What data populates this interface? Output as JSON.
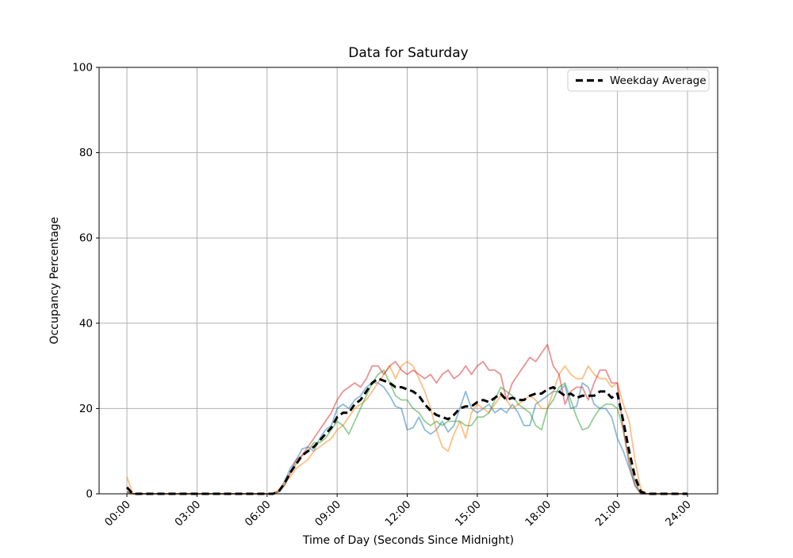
{
  "figure": {
    "title": "Data for Saturday",
    "background_color": "#ffffff"
  },
  "axes": {
    "xlabel": "Time of Day (Seconds Since Midnight)",
    "ylabel": "Occupancy Percentage",
    "x_ticks": [
      {
        "hours": 0,
        "label": "00:00"
      },
      {
        "hours": 3,
        "label": "03:00"
      },
      {
        "hours": 6,
        "label": "06:00"
      },
      {
        "hours": 9,
        "label": "09:00"
      },
      {
        "hours": 12,
        "label": "12:00"
      },
      {
        "hours": 15,
        "label": "15:00"
      },
      {
        "hours": 18,
        "label": "18:00"
      },
      {
        "hours": 21,
        "label": "21:00"
      },
      {
        "hours": 24,
        "label": "24:00"
      }
    ],
    "y_ticks": [
      0,
      20,
      40,
      60,
      80,
      100
    ],
    "xlim_hours": [
      -1.19,
      25.29
    ],
    "ylim": [
      0,
      100
    ],
    "grid": true,
    "grid_color": "#b0b0b0",
    "spine_color": "#000000"
  },
  "legend": {
    "position": "upper-right",
    "entries": [
      {
        "label": "Weekday Average",
        "line_style": "dashed",
        "color": "#000000"
      }
    ]
  },
  "chart_data": {
    "type": "line",
    "title": "Data for Saturday",
    "xlabel": "Time of Day (Seconds Since Midnight)",
    "ylabel": "Occupancy Percentage",
    "ylim": [
      0,
      100
    ],
    "x_unit": "hours_since_midnight",
    "x": [
      0,
      0.25,
      0.5,
      0.75,
      1,
      1.25,
      1.5,
      1.75,
      2,
      2.25,
      2.5,
      2.75,
      3,
      3.25,
      3.5,
      3.75,
      4,
      4.25,
      4.5,
      4.75,
      5,
      5.25,
      5.5,
      5.75,
      6,
      6.25,
      6.5,
      6.75,
      7,
      7.25,
      7.5,
      7.75,
      8,
      8.25,
      8.5,
      8.75,
      9,
      9.25,
      9.5,
      9.75,
      10,
      10.25,
      10.5,
      10.75,
      11,
      11.25,
      11.5,
      11.75,
      12,
      12.25,
      12.5,
      12.75,
      13,
      13.25,
      13.5,
      13.75,
      14,
      14.25,
      14.5,
      14.75,
      15,
      15.25,
      15.5,
      15.75,
      16,
      16.25,
      16.5,
      16.75,
      17,
      17.25,
      17.5,
      17.75,
      18,
      18.25,
      18.5,
      18.75,
      19,
      19.25,
      19.5,
      19.75,
      20,
      20.25,
      20.5,
      20.75,
      21,
      21.25,
      21.5,
      21.75,
      22,
      22.25,
      22.5,
      22.75,
      23,
      23.25,
      23.5,
      23.75,
      24
    ],
    "series": [
      {
        "name": "series-1",
        "color": "#1f77b4",
        "opacity": 0.5,
        "width": 1.8,
        "dash": null,
        "values": [
          0.5,
          0,
          0,
          0,
          0,
          0,
          0,
          0,
          0,
          0,
          0,
          0,
          0,
          0,
          0,
          0,
          0,
          0,
          0,
          0,
          0,
          0,
          0,
          0,
          0,
          0,
          0.5,
          3,
          6,
          8,
          10.5,
          11,
          10,
          13,
          15,
          16,
          20,
          21,
          20,
          22,
          23,
          25,
          26,
          26,
          25,
          23,
          20.5,
          20,
          15,
          15.5,
          18,
          15,
          14,
          15,
          17,
          14.5,
          16,
          20,
          24,
          20,
          19,
          20,
          21,
          19,
          20,
          19,
          21,
          19,
          16,
          16,
          21,
          22,
          23,
          24,
          24,
          25.5,
          20,
          20.5,
          26,
          25,
          21,
          20,
          20,
          18,
          13,
          10,
          6,
          2,
          0,
          0,
          0,
          0,
          0,
          0,
          0,
          0,
          0
        ]
      },
      {
        "name": "series-2",
        "color": "#ff7f0e",
        "opacity": 0.5,
        "width": 1.8,
        "dash": null,
        "values": [
          4,
          0,
          0,
          0,
          0,
          0,
          0,
          0,
          0,
          0,
          0,
          0,
          0,
          0,
          0,
          0,
          0,
          0,
          0,
          0,
          0,
          0,
          0,
          0,
          0,
          0,
          1,
          2.5,
          4,
          6,
          7,
          8,
          10,
          11,
          12,
          13,
          15,
          16,
          18,
          20,
          21,
          22,
          24,
          26,
          28,
          30,
          27,
          30,
          31,
          30,
          27,
          24,
          20,
          15,
          11,
          10,
          14,
          17,
          13,
          19,
          21,
          20,
          19,
          21,
          23,
          22,
          20,
          21,
          22,
          23,
          22,
          20,
          20,
          24,
          28,
          30,
          28,
          27,
          27,
          30,
          28,
          27,
          27,
          25,
          26,
          21,
          17,
          8,
          1,
          0,
          0,
          0,
          0,
          0,
          0,
          0,
          0
        ]
      },
      {
        "name": "series-3",
        "color": "#2ca02c",
        "opacity": 0.5,
        "width": 1.8,
        "dash": null,
        "values": [
          0.3,
          0,
          0,
          0,
          0,
          0,
          0,
          0,
          0,
          0,
          0,
          0,
          0,
          0,
          0,
          0,
          0,
          0,
          0,
          0,
          0,
          0,
          0,
          0,
          0,
          0,
          0.5,
          2,
          5,
          7,
          9,
          10,
          12,
          12,
          13,
          15,
          17,
          16,
          14,
          17,
          20,
          23,
          26,
          28,
          29,
          26,
          23,
          22,
          22,
          20,
          19,
          17,
          16,
          17,
          16,
          17,
          17,
          17,
          16,
          16,
          18,
          18,
          19,
          22,
          25,
          24,
          23,
          21,
          20,
          19,
          16,
          15,
          20,
          22,
          25,
          26,
          22,
          18,
          15,
          15.5,
          18,
          20,
          21,
          21,
          20,
          15,
          8,
          3,
          0,
          0,
          0,
          0,
          0,
          0,
          0,
          0,
          0
        ]
      },
      {
        "name": "series-4",
        "color": "#d62728",
        "opacity": 0.5,
        "width": 1.8,
        "dash": null,
        "values": [
          0.5,
          0,
          0,
          0,
          0,
          0,
          0,
          0,
          0,
          0,
          0,
          0,
          0,
          0,
          0,
          0,
          0,
          0,
          0,
          0,
          0,
          0,
          0,
          0,
          0,
          0,
          0.5,
          2,
          5,
          8,
          9,
          11,
          13,
          15,
          17,
          19,
          22,
          24,
          25,
          26,
          25,
          27,
          30,
          30,
          28,
          30,
          31,
          29,
          28,
          29,
          28,
          27,
          28,
          26,
          28,
          29,
          27,
          28,
          30,
          28,
          30,
          31,
          29,
          29,
          28,
          22,
          26,
          28,
          30,
          32,
          31,
          33,
          35,
          30,
          28,
          21,
          24,
          25,
          25,
          22,
          26,
          29,
          29,
          26,
          26,
          15,
          7,
          2,
          0,
          0,
          0,
          0,
          0,
          0,
          0,
          0,
          0
        ]
      },
      {
        "name": "Weekday Average",
        "color": "#000000",
        "opacity": 1,
        "width": 3,
        "dash": "9 5",
        "values": [
          1.5,
          0,
          0,
          0,
          0,
          0,
          0,
          0,
          0,
          0,
          0,
          0,
          0,
          0,
          0,
          0,
          0,
          0,
          0,
          0,
          0,
          0,
          0,
          0,
          0,
          0,
          0.5,
          2.5,
          5,
          7,
          9,
          10,
          11,
          12.5,
          14,
          15.5,
          18,
          19,
          19,
          21,
          22,
          24,
          26,
          27,
          26.5,
          26,
          25,
          25,
          24.5,
          24,
          23,
          21,
          19.5,
          18.5,
          18,
          17.5,
          18.5,
          20,
          20.5,
          20.5,
          21.5,
          22,
          21.5,
          22.5,
          23.5,
          22,
          22.5,
          22,
          22,
          23,
          23.5,
          23.5,
          24.5,
          25,
          24,
          23,
          23.5,
          22.5,
          23,
          23,
          23,
          24,
          24,
          22.5,
          23.5,
          17,
          10,
          4,
          0.5,
          0,
          0,
          0,
          0,
          0,
          0,
          0,
          0
        ]
      }
    ]
  }
}
